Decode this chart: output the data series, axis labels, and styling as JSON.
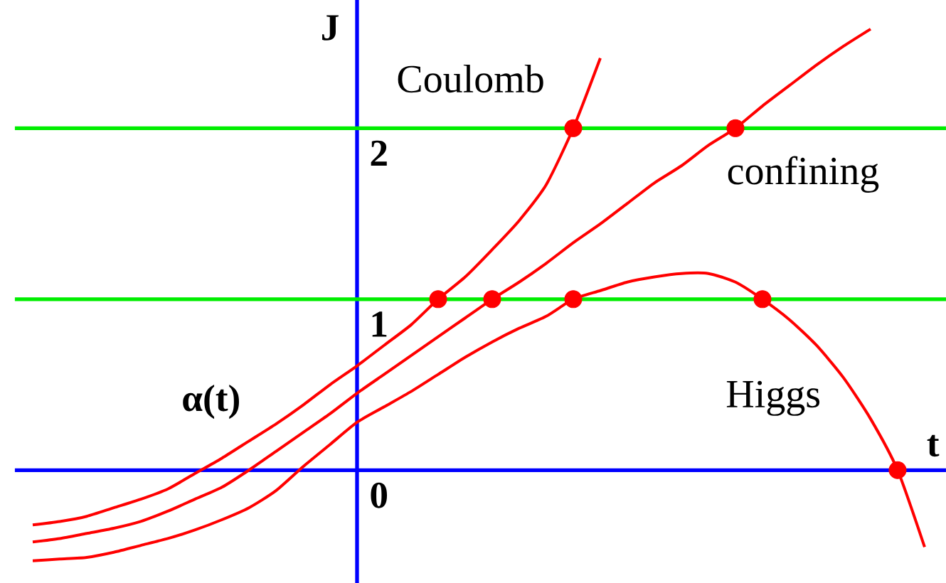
{
  "chart_data": {
    "type": "line",
    "xlabel": "t",
    "ylabel": "J",
    "annotations": [
      "α(t)"
    ],
    "categories": [
      null,
      null,
      null,
      null,
      null,
      null,
      null,
      null,
      null,
      null,
      null,
      null,
      null,
      null,
      null,
      null,
      null,
      null,
      null,
      null,
      null,
      null,
      null,
      null,
      null,
      null,
      null,
      null,
      null,
      null,
      null,
      null,
      null,
      null
    ],
    "ylim": [
      -0.66,
      2.75
    ],
    "yticks": [
      0,
      1,
      2
    ],
    "marker": "none",
    "ref_lines": [
      {
        "axis": "y",
        "value": 1,
        "color": "#00ee00"
      },
      {
        "axis": "y",
        "value": 2,
        "color": "#00ee00"
      },
      {
        "axis": "y",
        "value": 0,
        "color": "#0000ff"
      }
    ],
    "series": [
      {
        "name": "Coulomb",
        "color": "#ff0000",
        "values": [
          -0.32,
          -0.3,
          -0.27,
          -0.22,
          -0.17,
          -0.11,
          -0.02,
          0.07,
          0.17,
          0.27,
          0.38,
          0.5,
          0.61,
          0.73,
          0.85,
          1.0,
          1.13,
          1.29,
          1.46,
          1.67,
          2.0,
          2.41,
          null,
          null,
          null,
          null,
          null,
          null,
          null,
          null,
          null,
          null,
          null,
          null
        ]
      },
      {
        "name": "confining",
        "color": "#ff0000",
        "values": [
          -0.42,
          -0.4,
          -0.37,
          -0.34,
          -0.3,
          -0.24,
          -0.17,
          -0.1,
          0.0,
          0.11,
          0.22,
          0.33,
          0.45,
          0.56,
          0.67,
          0.78,
          0.89,
          1.0,
          1.1,
          1.21,
          1.33,
          1.44,
          1.56,
          1.68,
          1.78,
          1.9,
          2.0,
          2.13,
          2.25,
          2.37,
          2.48,
          2.58,
          null,
          null
        ]
      },
      {
        "name": "Higgs",
        "color": "#ff0000",
        "values": [
          -0.53,
          -0.52,
          -0.51,
          -0.48,
          -0.44,
          -0.4,
          -0.35,
          -0.29,
          -0.22,
          -0.12,
          0.02,
          0.15,
          0.28,
          0.37,
          0.46,
          0.56,
          0.66,
          0.75,
          0.83,
          0.9,
          1.0,
          1.05,
          1.1,
          1.13,
          1.15,
          1.15,
          1.1,
          1.0,
          0.88,
          0.73,
          0.54,
          0.3,
          0.0,
          -0.45
        ]
      },
      {
        "type": "scatter",
        "marker": "circle",
        "color": "#ff0000",
        "values": [
          null,
          null,
          null,
          null,
          null,
          null,
          null,
          null,
          null,
          null,
          null,
          null,
          null,
          null,
          null,
          1,
          null,
          1,
          null,
          null,
          1,
          null,
          null,
          null,
          null,
          null,
          null,
          1,
          null,
          null,
          null,
          null,
          0,
          null
        ]
      },
      {
        "type": "scatter",
        "marker": "circle",
        "color": "#ff0000",
        "values": [
          null,
          null,
          null,
          null,
          null,
          null,
          null,
          null,
          null,
          null,
          null,
          null,
          null,
          null,
          null,
          null,
          null,
          null,
          null,
          null,
          2,
          null,
          null,
          null,
          null,
          null,
          2,
          null,
          null,
          null,
          null,
          null,
          null,
          null
        ]
      }
    ]
  }
}
